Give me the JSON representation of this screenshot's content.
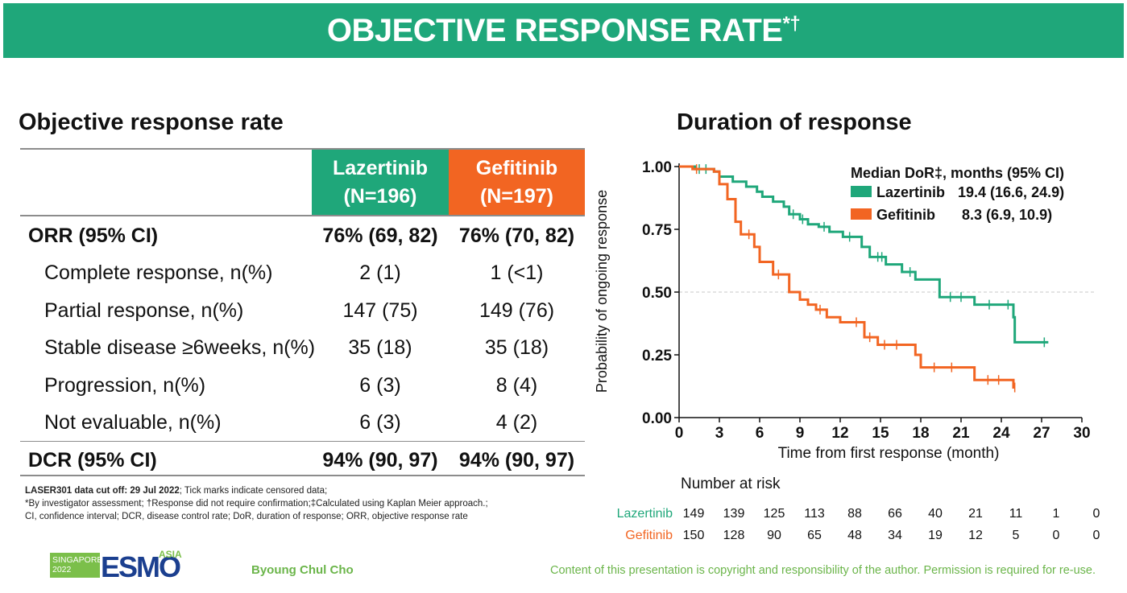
{
  "banner": {
    "title": "OBJECTIVE RESPONSE RATE",
    "title_sup": "*†"
  },
  "orr_section": {
    "title": "Objective response rate",
    "col1": {
      "name": "Lazertinib",
      "n": "(N=196)"
    },
    "col2": {
      "name": "Gefitinib",
      "n": "(N=197)"
    },
    "rows": [
      {
        "label": "ORR (95% CI)",
        "laz": "76% (69, 82)",
        "gef": "76% (70, 82)"
      },
      {
        "label": "Complete response, n(%)",
        "laz": "2 (1)",
        "gef": "1 (<1)"
      },
      {
        "label": "Partial response, n(%)",
        "laz": "147 (75)",
        "gef": "149 (76)"
      },
      {
        "label": "Stable disease ≥6weeks, n(%)",
        "laz": "35 (18)",
        "gef": "35 (18)"
      },
      {
        "label": "Progression, n(%)",
        "laz": "6 (3)",
        "gef": "8 (4)"
      },
      {
        "label": "Not evaluable, n(%)",
        "laz": "6 (3)",
        "gef": "4 (2)"
      },
      {
        "label": "DCR (95% CI)",
        "laz": "94% (90, 97)",
        "gef": "94% (90, 97)"
      }
    ]
  },
  "footnotes": {
    "line1_bold": "LASER301 data cut off: 29 Jul 2022",
    "line1_rest": "; Tick marks indicate censored data;",
    "line2": "*By investigator assessment; †Response did not require confirmation;‡Calculated using Kaplan Meier approach.;",
    "line3": "CI, confidence interval; DCR, disease control rate; DoR, duration of response; ORR, objective response rate"
  },
  "footer": {
    "logo_box": "SINGAPORE 2022",
    "logo_text": "ESMO",
    "logo_asia": "ASIA",
    "author": "Byoung Chul Cho",
    "copyright": "Content of this presentation is copyright and responsibility of the author. Permission is required for re-use."
  },
  "colors": {
    "green": "#1fa77a",
    "orange": "#f26522",
    "footer_green": "#6bb54a"
  },
  "chart_data": {
    "type": "line",
    "title": "Duration of response",
    "xlabel": "Time from first response (month)",
    "ylabel": "Probability of ongoing response",
    "xlim": [
      0,
      30
    ],
    "ylim": [
      0,
      1
    ],
    "x_ticks": [
      0,
      3,
      6,
      9,
      12,
      15,
      18,
      21,
      24,
      27,
      30
    ],
    "y_ticks": [
      0,
      0.25,
      0.5,
      0.75,
      1
    ],
    "y_tick_labels": [
      "0.00",
      "0.25",
      "0.50",
      "0.75",
      "1.00"
    ],
    "reference_line": 0.5,
    "legend": {
      "title": "Median DoR‡, months (95% CI)",
      "entries": [
        {
          "name": "Lazertinib",
          "value": "19.4 (16.6, 24.9)"
        },
        {
          "name": "Gefitinib",
          "value": "8.3 (6.9, 10.9)"
        }
      ],
      "position": "top-right"
    },
    "series": [
      {
        "name": "Lazertinib",
        "color": "#1fa77a",
        "x": [
          0,
          1.2,
          2.6,
          3.0,
          4.0,
          5.0,
          5.8,
          6.2,
          7.0,
          7.8,
          8.2,
          9.0,
          9.6,
          10.4,
          11.2,
          12.2,
          13.6,
          14.2,
          15.4,
          16.6,
          17.6,
          19.4,
          22.0,
          24.9,
          25.0,
          27.5
        ],
        "y": [
          1.0,
          0.99,
          0.98,
          0.96,
          0.94,
          0.92,
          0.9,
          0.88,
          0.86,
          0.84,
          0.81,
          0.79,
          0.77,
          0.76,
          0.74,
          0.72,
          0.68,
          0.64,
          0.61,
          0.58,
          0.55,
          0.48,
          0.45,
          0.4,
          0.3,
          0.3
        ],
        "censored_x": [
          1.5,
          2.0,
          8.5,
          9.2,
          10.8,
          12.7,
          14.8,
          15.1,
          17.2,
          20.2,
          21.0,
          23.1,
          24.5,
          27.2
        ],
        "at_risk": [
          149,
          139,
          125,
          113,
          88,
          66,
          40,
          21,
          11,
          1,
          0
        ]
      },
      {
        "name": "Gefitinib",
        "color": "#f26522",
        "x": [
          0,
          1.0,
          2.6,
          3.0,
          3.6,
          4.2,
          4.6,
          5.6,
          6.0,
          7.0,
          8.2,
          9.0,
          9.6,
          10.2,
          11.0,
          12.0,
          13.8,
          14.8,
          17.6,
          18.0,
          22.0,
          24.9,
          25.0
        ],
        "y": [
          1.0,
          0.99,
          0.98,
          0.93,
          0.87,
          0.78,
          0.73,
          0.68,
          0.62,
          0.57,
          0.5,
          0.47,
          0.45,
          0.43,
          0.4,
          0.38,
          0.32,
          0.29,
          0.25,
          0.2,
          0.15,
          0.12,
          0.12
        ],
        "censored_x": [
          1.3,
          5.2,
          7.4,
          10.5,
          13.2,
          14.2,
          15.3,
          16.2,
          19.0,
          20.3,
          23.0,
          23.8,
          25.0
        ],
        "at_risk": [
          150,
          128,
          90,
          65,
          48,
          34,
          19,
          12,
          5,
          0,
          0
        ]
      }
    ],
    "at_risk_title": "Number at risk",
    "at_risk_x": [
      0,
      3,
      6,
      9,
      12,
      15,
      18,
      21,
      24,
      27,
      30
    ]
  }
}
